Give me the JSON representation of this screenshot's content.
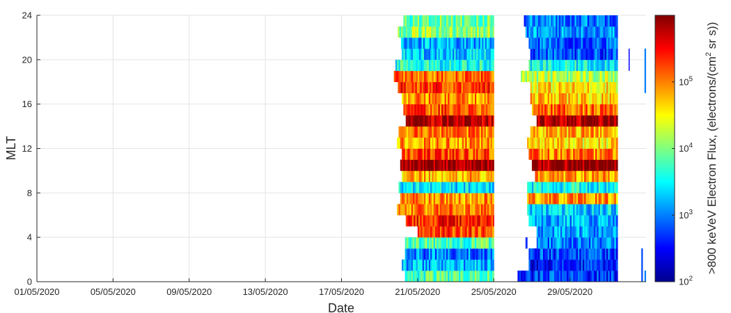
{
  "chart_data": {
    "type": "heatmap",
    "title": "",
    "xlabel": "Date",
    "ylabel": "MLT",
    "x_ticks": [
      "01/05/2020",
      "05/05/2020",
      "09/05/2020",
      "13/05/2020",
      "17/05/2020",
      "21/05/2020",
      "25/05/2020",
      "29/05/2020"
    ],
    "xlim": [
      "2020-05-01",
      "2020-06-02"
    ],
    "y_ticks": [
      "0",
      "4",
      "8",
      "12",
      "16",
      "20",
      "24"
    ],
    "ylim": [
      0,
      24
    ],
    "grid": true,
    "colorbar": {
      "label_main": ">800 keVeV Electron Flux, (electrons/(cm",
      "label_sup": "2",
      "label_tail": " sr s))",
      "scale": "log",
      "range": [
        100,
        1000000
      ],
      "ticks": [
        {
          "base": "10",
          "exp": "2"
        },
        {
          "base": "10",
          "exp": "3"
        },
        {
          "base": "10",
          "exp": "4"
        },
        {
          "base": "10",
          "exp": "5"
        }
      ],
      "colormap": "jet"
    },
    "mlt_bins": {
      "start": 0,
      "width": 1,
      "count": 24
    },
    "data_periods": [
      {
        "start": "2020-05-19T18:00",
        "end": "2020-05-25T00:00"
      },
      {
        "start": "2020-05-26T06:00",
        "end": "2020-05-31T12:00"
      }
    ],
    "log10_flux_by_mlt_bin": {
      "period_1": [
        3.8,
        3.2,
        3.0,
        3.8,
        5.2,
        5.4,
        5.0,
        4.9,
        3.4,
        4.8,
        5.9,
        5.2,
        4.9,
        5.0,
        5.8,
        5.2,
        4.9,
        5.3,
        5.1,
        3.6,
        3.3,
        3.2,
        4.1,
        3.9
      ],
      "period_2": [
        2.7,
        2.6,
        2.8,
        3.0,
        3.1,
        3.2,
        3.3,
        4.9,
        3.5,
        4.9,
        5.9,
        5.0,
        4.6,
        4.8,
        5.8,
        5.1,
        4.7,
        4.6,
        4.2,
        3.5,
        2.8,
        2.9,
        3.1,
        3.0
      ]
    },
    "left_edge_mlt_bins": {
      "period_1": [
        "2020-05-20T08:00",
        "2020-05-20T04:00",
        "2020-05-20T08:00",
        "2020-05-20T08:00",
        "2020-05-21T00:00",
        "2020-05-20T09:00",
        "2020-05-19T22:00",
        "2020-05-20T02:00",
        "2020-05-20T00:00",
        "2020-05-20T04:00",
        "2020-05-20T02:00",
        "2020-05-20T04:00",
        "2020-05-19T22:00",
        "2020-05-20T00:00",
        "2020-05-20T09:00",
        "2020-05-20T06:00",
        "2020-05-20T04:00",
        "2020-05-19T23:00",
        "2020-05-19T18:00",
        "2020-05-19T20:00",
        "2020-05-20T04:00",
        "2020-05-20T03:00",
        "2020-05-19T23:00",
        "2020-05-20T06:00"
      ],
      "period_2": [
        "2020-05-26T06:00",
        "2020-05-26T20:00",
        "2020-05-26T20:00",
        "2020-05-26T16:00",
        "2020-05-26T20:00",
        "2020-05-26T20:00",
        "2020-05-26T18:00",
        "2020-05-26T18:00",
        "2020-05-26T18:00",
        "2020-05-27T04:00",
        "2020-05-27T00:00",
        "2020-05-26T20:00",
        "2020-05-26T18:00",
        "2020-05-26T22:00",
        "2020-05-27T06:00",
        "2020-05-27T00:00",
        "2020-05-26T22:00",
        "2020-05-26T22:00",
        "2020-05-26T10:00",
        "2020-05-26T20:00",
        "2020-05-26T22:00",
        "2020-05-26T20:00",
        "2020-05-26T16:00",
        "2020-05-26T14:00"
      ]
    },
    "gaps": [
      {
        "mlt_from": 3,
        "mlt_to": 5,
        "start": "2020-05-26T18:00",
        "end": "2020-05-27T06:00"
      }
    ],
    "sparse_segments": [
      {
        "start": "2020-06-01T02:00",
        "end": "2020-06-01T03:00",
        "mlt_from": 19,
        "mlt_to": 21,
        "log10_flux": 2.5
      },
      {
        "start": "2020-06-01T22:00",
        "end": "2020-06-02T00:00",
        "mlt_from": 17,
        "mlt_to": 21,
        "log10_flux": 3.0
      },
      {
        "start": "2020-06-01T18:00",
        "end": "2020-06-01T20:00",
        "mlt_from": 0,
        "mlt_to": 3,
        "log10_flux": 2.8
      },
      {
        "start": "2020-06-01T22:00",
        "end": "2020-06-02T00:00",
        "mlt_from": 0,
        "mlt_to": 1,
        "log10_flux": 3.0
      }
    ]
  }
}
